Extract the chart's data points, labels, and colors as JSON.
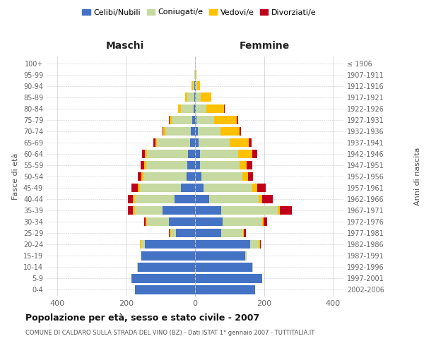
{
  "age_groups": [
    "0-4",
    "5-9",
    "10-14",
    "15-19",
    "20-24",
    "25-29",
    "30-34",
    "35-39",
    "40-44",
    "45-49",
    "50-54",
    "55-59",
    "60-64",
    "65-69",
    "70-74",
    "75-79",
    "80-84",
    "85-89",
    "90-94",
    "95-99",
    "100+"
  ],
  "birth_years": [
    "2002-2006",
    "1997-2001",
    "1992-1996",
    "1987-1991",
    "1982-1986",
    "1977-1981",
    "1972-1976",
    "1967-1971",
    "1962-1966",
    "1957-1961",
    "1952-1956",
    "1947-1951",
    "1942-1946",
    "1937-1941",
    "1932-1936",
    "1927-1931",
    "1922-1926",
    "1917-1921",
    "1912-1916",
    "1907-1911",
    "≤ 1906"
  ],
  "maschi": {
    "celibi": [
      175,
      185,
      165,
      155,
      145,
      55,
      75,
      95,
      60,
      40,
      25,
      22,
      20,
      15,
      12,
      8,
      5,
      3,
      2,
      0,
      0
    ],
    "coniugati": [
      0,
      0,
      2,
      2,
      10,
      15,
      65,
      80,
      115,
      120,
      125,
      120,
      120,
      95,
      75,
      60,
      35,
      20,
      5,
      2,
      0
    ],
    "vedovi": [
      0,
      0,
      0,
      0,
      5,
      3,
      3,
      5,
      5,
      5,
      5,
      5,
      5,
      5,
      5,
      5,
      10,
      5,
      3,
      1,
      0
    ],
    "divorziati": [
      0,
      0,
      0,
      0,
      0,
      3,
      5,
      15,
      15,
      20,
      10,
      10,
      8,
      5,
      2,
      2,
      0,
      0,
      0,
      0,
      0
    ]
  },
  "femmine": {
    "nubili": [
      175,
      195,
      165,
      145,
      160,
      75,
      80,
      75,
      40,
      25,
      18,
      15,
      15,
      10,
      8,
      5,
      3,
      2,
      2,
      0,
      0
    ],
    "coniugate": [
      0,
      0,
      2,
      5,
      25,
      65,
      115,
      165,
      145,
      140,
      120,
      115,
      110,
      90,
      65,
      50,
      30,
      15,
      5,
      2,
      0
    ],
    "vedove": [
      0,
      0,
      0,
      0,
      3,
      2,
      3,
      5,
      10,
      15,
      15,
      20,
      40,
      55,
      55,
      65,
      50,
      30,
      8,
      3,
      0
    ],
    "divorziate": [
      0,
      0,
      0,
      0,
      2,
      5,
      10,
      35,
      30,
      25,
      15,
      15,
      15,
      8,
      5,
      5,
      3,
      0,
      0,
      0,
      0
    ]
  },
  "colors": {
    "celibi_nubili": "#4472C4",
    "coniugati": "#c5d9a0",
    "vedovi": "#ffc000",
    "divorziati": "#c0001a"
  },
  "title": "Popolazione per età, sesso e stato civile - 2007",
  "subtitle": "COMUNE DI CALDARO SULLA STRADA DEL VINO (BZ) - Dati ISTAT 1° gennaio 2007 - TUTTITALIA.IT",
  "ylabel_left": "Fasce di età",
  "ylabel_right": "Anni di nascita",
  "xlabel_left": "Maschi",
  "xlabel_right": "Femmine",
  "xlim": 430,
  "legend_labels": [
    "Celibi/Nubili",
    "Coniugati/e",
    "Vedovi/e",
    "Divorziati/e"
  ]
}
